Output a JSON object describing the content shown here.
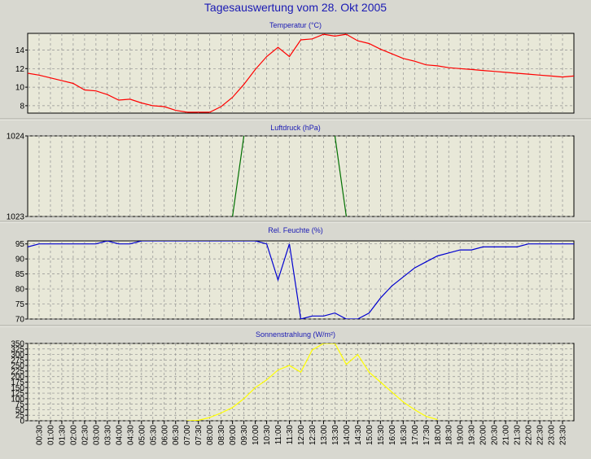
{
  "title": "Tagesauswertung vom 28. Okt 2005",
  "time_labels": [
    "00:30",
    "01:00",
    "01:30",
    "02:00",
    "02:30",
    "03:00",
    "03:30",
    "04:00",
    "04:30",
    "05:00",
    "05:30",
    "06:00",
    "06:30",
    "07:00",
    "07:30",
    "08:00",
    "08:30",
    "09:00",
    "09:30",
    "10:00",
    "10:30",
    "11:00",
    "11:30",
    "12:00",
    "12:30",
    "13:00",
    "13:30",
    "14:00",
    "14:30",
    "15:00",
    "15:30",
    "16:00",
    "16:30",
    "17:00",
    "17:30",
    "18:00",
    "18:30",
    "19:00",
    "19:30",
    "20:00",
    "20:30",
    "21:00",
    "21:30",
    "22:00",
    "22:30",
    "23:00",
    "23:30"
  ],
  "colors": {
    "background": "#d8d8d0",
    "plot_background": "#e8e8d8",
    "grid": "#909090",
    "title": "#1a1ab4"
  },
  "chart_data": [
    {
      "type": "line",
      "title": "Temperatur (°C)",
      "color": "#ff0000",
      "yticks": [
        8,
        10,
        12,
        14
      ],
      "ylim": [
        7.2,
        15.8
      ],
      "grid": true,
      "x": [
        "00:00",
        "00:30",
        "01:00",
        "01:30",
        "02:00",
        "02:30",
        "03:00",
        "03:30",
        "04:00",
        "04:30",
        "05:00",
        "05:30",
        "06:00",
        "06:30",
        "07:00",
        "07:30",
        "08:00",
        "08:30",
        "09:00",
        "09:30",
        "10:00",
        "10:30",
        "11:00",
        "11:30",
        "12:00",
        "12:30",
        "13:00",
        "13:30",
        "14:00",
        "14:30",
        "15:00",
        "15:30",
        "16:00",
        "16:30",
        "17:00",
        "17:30",
        "18:00",
        "18:30",
        "19:00",
        "19:30",
        "20:00",
        "20:30",
        "21:00",
        "21:30",
        "22:00",
        "22:30",
        "23:00",
        "23:30",
        "24:00"
      ],
      "values": [
        11.5,
        11.3,
        11.0,
        10.7,
        10.4,
        9.7,
        9.6,
        9.2,
        8.6,
        8.7,
        8.3,
        8.0,
        7.9,
        7.5,
        7.3,
        7.3,
        7.3,
        7.9,
        8.9,
        10.3,
        11.9,
        13.3,
        14.3,
        13.3,
        15.1,
        15.2,
        15.7,
        15.5,
        15.7,
        15.0,
        14.7,
        14.1,
        13.6,
        13.1,
        12.8,
        12.4,
        12.3,
        12.1,
        12.0,
        11.9,
        11.8,
        11.7,
        11.6,
        11.5,
        11.4,
        11.3,
        11.2,
        11.1,
        11.2
      ]
    },
    {
      "type": "line",
      "title": "Luftdruck (hPa)",
      "color": "#007000",
      "yticks": [
        1023,
        1024
      ],
      "ylim": [
        1023,
        1024
      ],
      "grid": true,
      "x": [
        "00:00",
        "09:00",
        "09:30",
        "13:30",
        "14:00",
        "24:00"
      ],
      "values": [
        1023.5,
        1023,
        1024,
        1024,
        1023,
        1023.5
      ],
      "visible_segments": [
        [
          1,
          2
        ],
        [
          3,
          4
        ]
      ]
    },
    {
      "type": "line",
      "title": "Rel. Feuchte (%)",
      "color": "#0000d0",
      "yticks": [
        70,
        75,
        80,
        85,
        90,
        95
      ],
      "ylim": [
        70,
        96
      ],
      "grid": true,
      "x": [
        "00:00",
        "00:30",
        "01:00",
        "01:30",
        "02:00",
        "02:30",
        "03:00",
        "03:30",
        "04:00",
        "04:30",
        "05:00",
        "05:30",
        "06:00",
        "06:30",
        "07:00",
        "07:30",
        "08:00",
        "08:30",
        "09:00",
        "09:30",
        "10:00",
        "10:30",
        "11:00",
        "11:30",
        "12:00",
        "12:30",
        "13:00",
        "13:30",
        "14:00",
        "14:30",
        "15:00",
        "15:30",
        "16:00",
        "16:30",
        "17:00",
        "17:30",
        "18:00",
        "18:30",
        "19:00",
        "19:30",
        "20:00",
        "20:30",
        "21:00",
        "21:30",
        "22:00",
        "22:30",
        "23:00",
        "23:30",
        "24:00"
      ],
      "values": [
        94,
        95,
        95,
        95,
        95,
        95,
        95,
        96,
        95,
        95,
        96,
        96,
        96,
        96,
        96,
        96,
        96,
        96,
        96,
        96,
        96,
        95,
        83,
        95,
        70,
        71,
        71,
        72,
        70,
        70,
        72,
        77,
        81,
        84,
        87,
        89,
        91,
        92,
        93,
        93,
        94,
        94,
        94,
        94,
        95,
        95,
        95,
        95,
        95
      ]
    },
    {
      "type": "line",
      "title": "Sonnenstrahlung (W/m²)",
      "color": "#ffff00",
      "yticks": [
        0,
        25,
        50,
        75,
        100,
        125,
        150,
        175,
        200,
        225,
        250,
        275,
        300,
        325,
        350
      ],
      "ylim": [
        0,
        350
      ],
      "grid": true,
      "x": [
        "07:00",
        "07:30",
        "08:00",
        "08:30",
        "09:00",
        "09:30",
        "10:00",
        "10:30",
        "11:00",
        "11:30",
        "12:00",
        "12:30",
        "13:00",
        "13:30",
        "14:00",
        "14:30",
        "15:00",
        "15:30",
        "16:00",
        "16:30",
        "17:00",
        "17:30",
        "18:00"
      ],
      "values": [
        0,
        2,
        15,
        35,
        60,
        100,
        150,
        185,
        230,
        250,
        220,
        320,
        350,
        350,
        255,
        300,
        220,
        175,
        130,
        85,
        50,
        20,
        5
      ]
    }
  ]
}
